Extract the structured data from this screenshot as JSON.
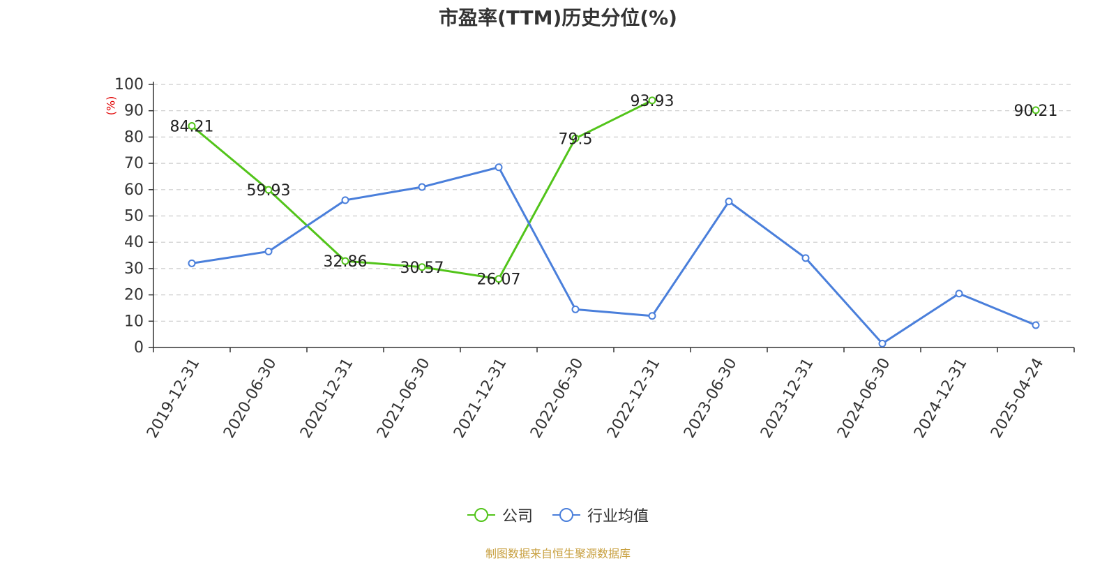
{
  "chart_data": {
    "type": "line",
    "title": "市盈率(TTM)历史分位(%)",
    "y_unit": "(%)",
    "ylim": [
      0,
      100
    ],
    "y_ticks": [
      0,
      10,
      20,
      30,
      40,
      50,
      60,
      70,
      80,
      90,
      100
    ],
    "grid": true,
    "legend_position": "bottom-center",
    "categories": [
      "2019-12-31",
      "2020-06-30",
      "2020-12-31",
      "2021-06-30",
      "2021-12-31",
      "2022-06-30",
      "2022-12-31",
      "2023-06-30",
      "2023-12-31",
      "2024-06-30",
      "2024-12-31",
      "2025-04-24"
    ],
    "series": [
      {
        "name": "公司",
        "color": "#52c41a",
        "show_labels": true,
        "values": [
          84.21,
          59.93,
          32.86,
          30.57,
          26.07,
          79.5,
          93.93,
          null,
          null,
          null,
          null,
          90.21
        ],
        "labels": [
          "84.21",
          "59.93",
          "32.86",
          "30.57",
          "26.07",
          "79.5",
          "93.93",
          null,
          null,
          null,
          null,
          "90.21"
        ]
      },
      {
        "name": "行业均值",
        "color": "#4a7fdb",
        "show_labels": false,
        "values": [
          32,
          36.5,
          56,
          61,
          68.5,
          14.5,
          12,
          55.5,
          34,
          1.5,
          20.5,
          8.5
        ]
      }
    ]
  },
  "legend": {
    "company": "公司",
    "industry": "行业均值"
  },
  "source": "制图数据来自恒生聚源数据库"
}
